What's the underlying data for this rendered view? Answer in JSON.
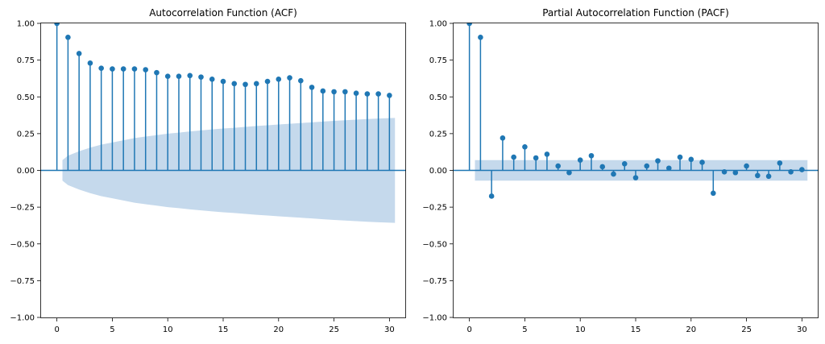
{
  "chart_data": [
    {
      "type": "stem",
      "title": "Autocorrelation Function (ACF)",
      "xlabel": "",
      "ylabel": "",
      "ylim": [
        -1.0,
        1.0
      ],
      "xlim": [
        -1.5,
        31.5
      ],
      "yticks": [
        -1.0,
        -0.75,
        -0.5,
        -0.25,
        0.0,
        0.25,
        0.5,
        0.75,
        1.0
      ],
      "ytick_labels": [
        "−1.00",
        "−0.75",
        "−0.50",
        "−0.25",
        "0.00",
        "0.25",
        "0.50",
        "0.75",
        "1.00"
      ],
      "xticks": [
        0,
        5,
        10,
        15,
        20,
        25,
        30
      ],
      "xtick_labels": [
        "0",
        "5",
        "10",
        "15",
        "20",
        "25",
        "30"
      ],
      "grid": false,
      "color": "#1f77b4",
      "band_color": "#c5d9ec",
      "lags": [
        0,
        1,
        2,
        3,
        4,
        5,
        6,
        7,
        8,
        9,
        10,
        11,
        12,
        13,
        14,
        15,
        16,
        17,
        18,
        19,
        20,
        21,
        22,
        23,
        24,
        25,
        26,
        27,
        28,
        29,
        30
      ],
      "values": [
        1.0,
        0.905,
        0.795,
        0.73,
        0.695,
        0.69,
        0.69,
        0.69,
        0.685,
        0.665,
        0.64,
        0.64,
        0.645,
        0.635,
        0.62,
        0.605,
        0.59,
        0.585,
        0.59,
        0.605,
        0.62,
        0.63,
        0.61,
        0.565,
        0.54,
        0.535,
        0.535,
        0.525,
        0.52,
        0.52,
        0.51
      ],
      "conf_band": {
        "lags": [
          0.5,
          1,
          2,
          3,
          4,
          5,
          6,
          7,
          8,
          9,
          10,
          11,
          12,
          13,
          14,
          15,
          16,
          17,
          18,
          19,
          20,
          21,
          22,
          23,
          24,
          25,
          26,
          27,
          28,
          29,
          30.5
        ],
        "upper": [
          0.07,
          0.1,
          0.13,
          0.155,
          0.175,
          0.19,
          0.205,
          0.22,
          0.23,
          0.24,
          0.25,
          0.257,
          0.265,
          0.272,
          0.279,
          0.285,
          0.29,
          0.296,
          0.302,
          0.307,
          0.312,
          0.317,
          0.322,
          0.327,
          0.332,
          0.337,
          0.341,
          0.345,
          0.349,
          0.353,
          0.357
        ]
      }
    },
    {
      "type": "stem",
      "title": "Partial Autocorrelation Function (PACF)",
      "xlabel": "",
      "ylabel": "",
      "ylim": [
        -1.0,
        1.0
      ],
      "xlim": [
        -1.5,
        31.5
      ],
      "yticks": [
        -1.0,
        -0.75,
        -0.5,
        -0.25,
        0.0,
        0.25,
        0.5,
        0.75,
        1.0
      ],
      "ytick_labels": [
        "−1.00",
        "−0.75",
        "−0.50",
        "−0.25",
        "0.00",
        "0.25",
        "0.50",
        "0.75",
        "1.00"
      ],
      "xticks": [
        0,
        5,
        10,
        15,
        20,
        25,
        30
      ],
      "xtick_labels": [
        "0",
        "5",
        "10",
        "15",
        "20",
        "25",
        "30"
      ],
      "grid": false,
      "color": "#1f77b4",
      "band_color": "#c5d9ec",
      "lags": [
        0,
        1,
        2,
        3,
        4,
        5,
        6,
        7,
        8,
        9,
        10,
        11,
        12,
        13,
        14,
        15,
        16,
        17,
        18,
        19,
        20,
        21,
        22,
        23,
        24,
        25,
        26,
        27,
        28,
        29,
        30
      ],
      "values": [
        1.0,
        0.905,
        -0.175,
        0.22,
        0.09,
        0.16,
        0.085,
        0.11,
        0.03,
        -0.015,
        0.07,
        0.1,
        0.025,
        -0.025,
        0.045,
        -0.05,
        0.03,
        0.065,
        0.015,
        0.09,
        0.075,
        0.055,
        -0.155,
        -0.01,
        -0.015,
        0.03,
        -0.035,
        -0.04,
        0.05,
        -0.01,
        0.005
      ],
      "conf_band": {
        "lags": [
          0.5,
          30.5
        ],
        "upper": [
          0.07,
          0.07
        ]
      }
    }
  ]
}
